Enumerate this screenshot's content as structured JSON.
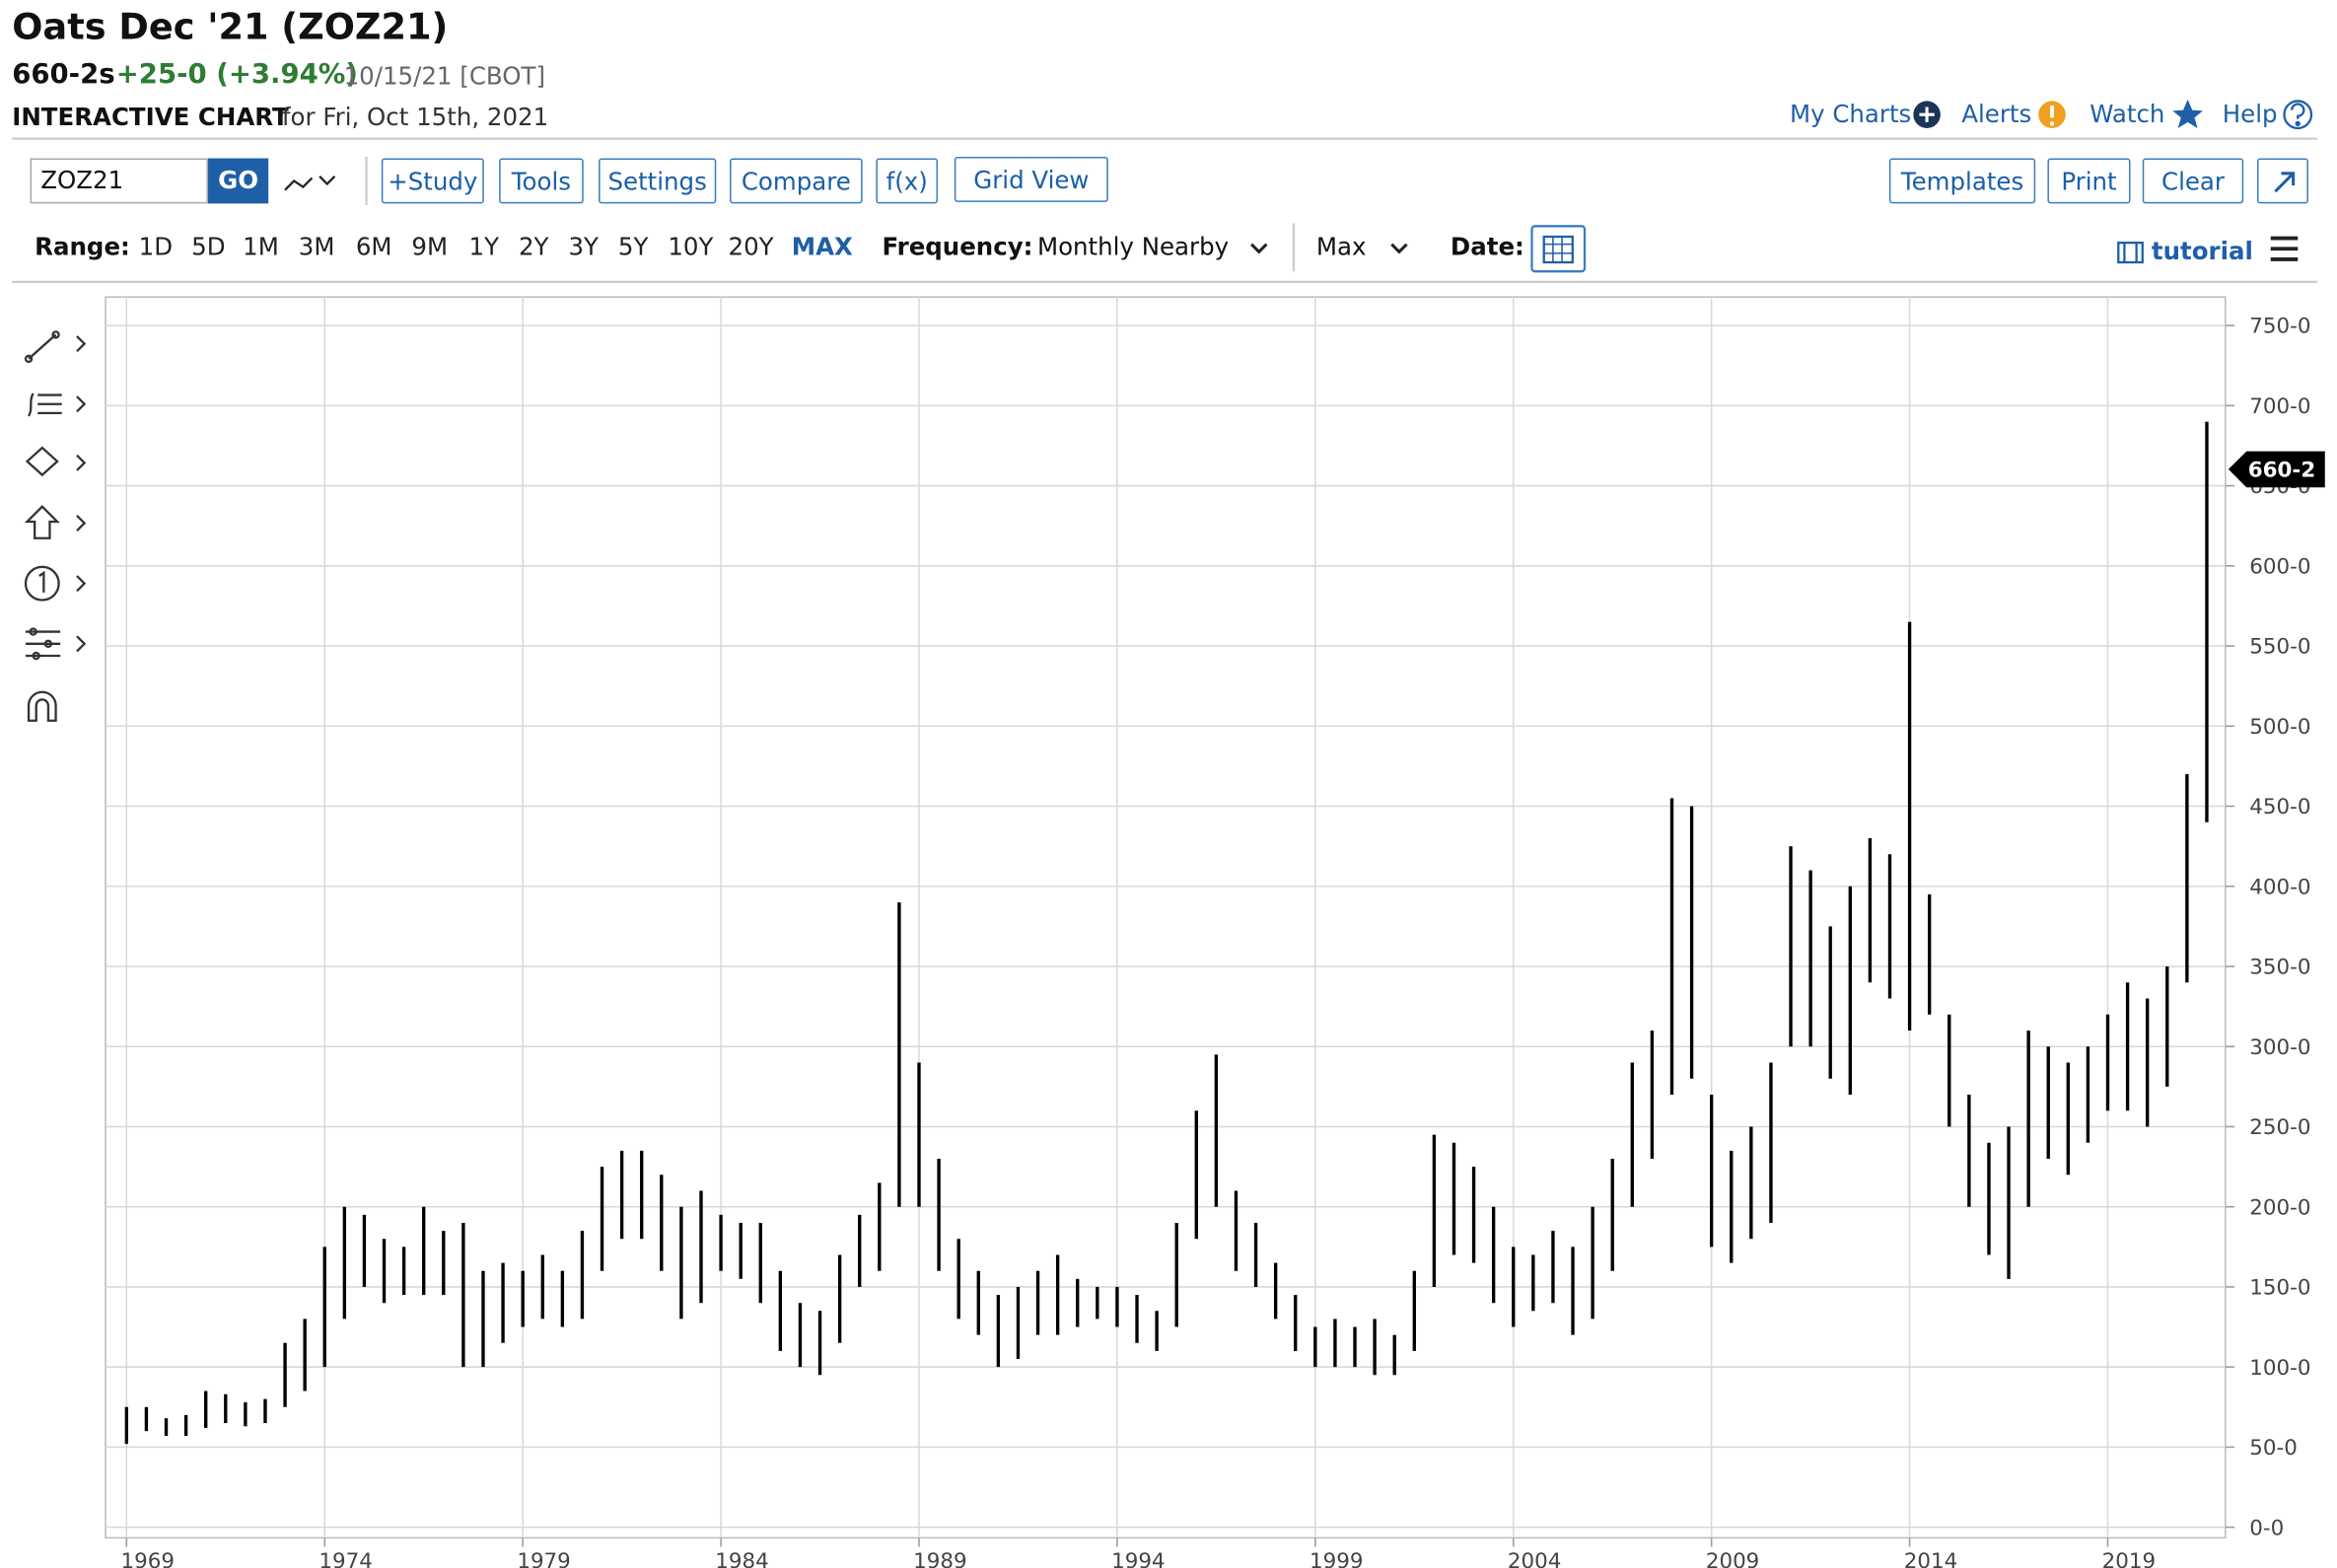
{
  "header": {
    "title": "Oats Dec '21 (ZOZ21)",
    "last": "660-2s",
    "change": "+25-0 (+3.94%)",
    "date_exchange": "10/15/21 [CBOT]",
    "subtitle": "INTERACTIVE CHART",
    "subtitle_date": "for Fri, Oct 15th, 2021"
  },
  "links": [
    "My Charts",
    "Alerts",
    "Watch",
    "Help"
  ],
  "toolbar": {
    "symbol": "ZOZ21",
    "go": "GO",
    "buttons": [
      "+Study",
      "Tools",
      "Settings",
      "Compare",
      "f(x)",
      "Grid View"
    ],
    "right_buttons": [
      "Templates",
      "Print",
      "Clear"
    ]
  },
  "range_bar": {
    "label": "Range:",
    "ranges": [
      "1D",
      "5D",
      "1M",
      "3M",
      "6M",
      "9M",
      "1Y",
      "2Y",
      "3Y",
      "5Y",
      "10Y",
      "20Y",
      "MAX"
    ],
    "frequency_label": "Frequency:",
    "frequency": "Monthly Nearby",
    "aggregation": "Max",
    "date_label": "Date:",
    "tutorial": "tutorial"
  },
  "chart_data": {
    "type": "ohlc",
    "color": "#000000",
    "grid": true,
    "x": [
      1969,
      1969.5,
      1970,
      1970.5,
      1971,
      1971.5,
      1972,
      1972.5,
      1973,
      1973.5,
      1974,
      1974.5,
      1975,
      1975.5,
      1976,
      1976.5,
      1977,
      1977.5,
      1978,
      1978.5,
      1979,
      1979.5,
      1980,
      1980.5,
      1981,
      1981.5,
      1982,
      1982.5,
      1983,
      1983.5,
      1984,
      1984.5,
      1985,
      1985.5,
      1986,
      1986.5,
      1987,
      1987.5,
      1988,
      1988.5,
      1989,
      1989.5,
      1990,
      1990.5,
      1991,
      1991.5,
      1992,
      1992.5,
      1993,
      1993.5,
      1994,
      1994.5,
      1995,
      1995.5,
      1996,
      1996.5,
      1997,
      1997.5,
      1998,
      1998.5,
      1999,
      1999.5,
      2000,
      2000.5,
      2001,
      2001.5,
      2002,
      2002.5,
      2003,
      2003.5,
      2004,
      2004.5,
      2005,
      2005.5,
      2006,
      2006.5,
      2007,
      2007.5,
      2008,
      2008.5,
      2009,
      2009.5,
      2010,
      2010.5,
      2011,
      2011.5,
      2012,
      2012.5,
      2013,
      2013.5,
      2014,
      2014.5,
      2015,
      2015.5,
      2016,
      2016.5,
      2017,
      2017.5,
      2018,
      2018.5,
      2019,
      2019.5,
      2020,
      2020.5,
      2021,
      2021.5
    ],
    "high": [
      75,
      75,
      68,
      70,
      85,
      83,
      78,
      80,
      115,
      130,
      175,
      200,
      195,
      180,
      175,
      200,
      185,
      190,
      160,
      165,
      160,
      170,
      160,
      185,
      225,
      235,
      235,
      220,
      200,
      210,
      195,
      190,
      190,
      160,
      140,
      135,
      170,
      195,
      215,
      390,
      290,
      230,
      180,
      160,
      145,
      150,
      160,
      170,
      155,
      150,
      150,
      145,
      135,
      190,
      260,
      295,
      210,
      190,
      165,
      145,
      125,
      130,
      125,
      130,
      120,
      160,
      245,
      240,
      225,
      200,
      175,
      170,
      185,
      175,
      200,
      230,
      290,
      310,
      455,
      450,
      270,
      235,
      250,
      290,
      425,
      410,
      375,
      400,
      430,
      420,
      565,
      395,
      320,
      270,
      240,
      250,
      310,
      300,
      290,
      300,
      320,
      340,
      330,
      350,
      470,
      690
    ],
    "low": [
      52,
      60,
      57,
      57,
      62,
      65,
      63,
      65,
      75,
      85,
      100,
      130,
      150,
      140,
      145,
      145,
      145,
      100,
      100,
      115,
      125,
      130,
      125,
      130,
      160,
      180,
      180,
      160,
      130,
      140,
      160,
      155,
      140,
      110,
      100,
      95,
      115,
      150,
      160,
      200,
      200,
      160,
      130,
      120,
      100,
      105,
      120,
      120,
      125,
      130,
      125,
      115,
      110,
      125,
      180,
      200,
      160,
      150,
      130,
      110,
      100,
      100,
      100,
      95,
      95,
      110,
      150,
      170,
      165,
      140,
      125,
      135,
      140,
      120,
      130,
      160,
      200,
      230,
      270,
      280,
      175,
      165,
      180,
      190,
      300,
      300,
      280,
      270,
      340,
      330,
      310,
      320,
      250,
      200,
      170,
      155,
      200,
      230,
      220,
      240,
      260,
      260,
      250,
      275,
      340,
      440
    ],
    "xlim": [
      1968.47,
      2021.97
    ],
    "xticks": [
      1969,
      1974,
      1979,
      1984,
      1989,
      1994,
      1999,
      2004,
      2009,
      2014,
      2019
    ],
    "ylim": [
      -6.6,
      767.8
    ],
    "yticks": [
      {
        "value": 0,
        "label": "0-0"
      },
      {
        "value": 50,
        "label": "50-0"
      },
      {
        "value": 100,
        "label": "100-0"
      },
      {
        "value": 150,
        "label": "150-0"
      },
      {
        "value": 200,
        "label": "200-0"
      },
      {
        "value": 250,
        "label": "250-0"
      },
      {
        "value": 300,
        "label": "300-0"
      },
      {
        "value": 350,
        "label": "350-0"
      },
      {
        "value": 400,
        "label": "400-0"
      },
      {
        "value": 450,
        "label": "450-0"
      },
      {
        "value": 500,
        "label": "500-0"
      },
      {
        "value": 550,
        "label": "550-0"
      },
      {
        "value": 600,
        "label": "600-0"
      },
      {
        "value": 650,
        "label": "650-0"
      },
      {
        "value": 700,
        "label": "700-0"
      },
      {
        "value": 750,
        "label": "750-0"
      }
    ],
    "last_price": {
      "value": 660.25,
      "label": "660-2"
    }
  }
}
